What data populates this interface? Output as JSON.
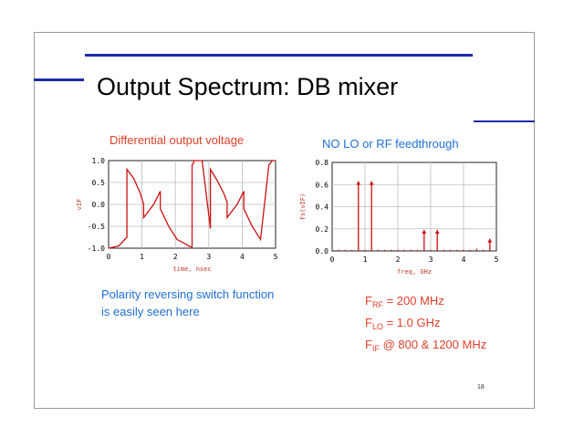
{
  "slide": {
    "title": "Output Spectrum: DB mixer",
    "left_caption": "Differential output voltage",
    "right_caption": "NO LO or RF feedthrough",
    "note_line1": "Polarity reversing switch function",
    "note_line2": "is easily seen here",
    "params": [
      {
        "sym": "F",
        "sub": "RF",
        "rest": " = 200 MHz"
      },
      {
        "sym": "F",
        "sub": "LO",
        "rest": " = 1.0 GHz"
      },
      {
        "sym": "F",
        "sub": "IF",
        "rest": " @ 800 & 1200 MHz"
      }
    ],
    "page_number": "18"
  },
  "colors": {
    "accent_bar": "#1d2aa8",
    "trace": "#cc1111",
    "caption_red": "#e0402a",
    "caption_blue": "#1f6fd6"
  },
  "chart_data": [
    {
      "type": "line",
      "xlabel": "time, nsec",
      "ylabel": "vIF",
      "xlim": [
        0,
        5
      ],
      "ylim": [
        -1.0,
        1.0
      ],
      "xticks": [
        "0",
        "1",
        "2",
        "3",
        "4",
        "5"
      ],
      "yticks": [
        "1.0",
        "0.5",
        "0.0",
        "-0.5",
        "-1.0"
      ],
      "grid": true,
      "series": [
        {
          "x": [
            0.0,
            0.3,
            0.55,
            0.55,
            0.75,
            0.95,
            1.05,
            1.05,
            1.35,
            1.55,
            1.55,
            1.8,
            2.05,
            2.3,
            2.4,
            2.5,
            2.5,
            2.55,
            2.55,
            2.8,
            3.05,
            3.05,
            3.25,
            3.45,
            3.55,
            3.55,
            3.85,
            4.05,
            4.05,
            4.3,
            4.55,
            4.8,
            4.9,
            5.0
          ],
          "y": [
            -1.0,
            -0.95,
            -0.75,
            0.8,
            0.6,
            0.25,
            0.0,
            -0.3,
            0.0,
            0.3,
            -0.1,
            -0.5,
            -0.8,
            -0.9,
            -0.95,
            -0.97,
            0.9,
            0.95,
            1.0,
            1.0,
            -0.55,
            0.8,
            0.55,
            0.25,
            0.05,
            -0.3,
            0.0,
            0.3,
            -0.1,
            -0.5,
            -0.8,
            0.9,
            1.0,
            1.0
          ]
        }
      ]
    },
    {
      "type": "bar",
      "xlabel": "freq, GHz",
      "ylabel": "fs(vIF)",
      "xlim": [
        0,
        5
      ],
      "ylim": [
        0.0,
        0.8
      ],
      "xticks": [
        "0",
        "1",
        "2",
        "3",
        "4",
        "5"
      ],
      "yticks": [
        "0.8",
        "0.6",
        "0.4",
        "0.2",
        "0.0"
      ],
      "grid": true,
      "x": [
        0.2,
        0.4,
        0.6,
        0.8,
        1.0,
        1.2,
        1.4,
        1.6,
        1.8,
        2.0,
        2.2,
        2.4,
        2.6,
        2.8,
        3.0,
        3.2,
        3.4,
        3.6,
        3.8,
        4.0,
        4.2,
        4.4,
        4.6,
        4.8
      ],
      "values": [
        0.01,
        0.01,
        0.01,
        0.63,
        0.01,
        0.63,
        0.01,
        0.01,
        0.01,
        0.01,
        0.01,
        0.01,
        0.01,
        0.19,
        0.01,
        0.19,
        0.01,
        0.01,
        0.01,
        0.01,
        0.01,
        0.02,
        0.01,
        0.11
      ]
    }
  ]
}
